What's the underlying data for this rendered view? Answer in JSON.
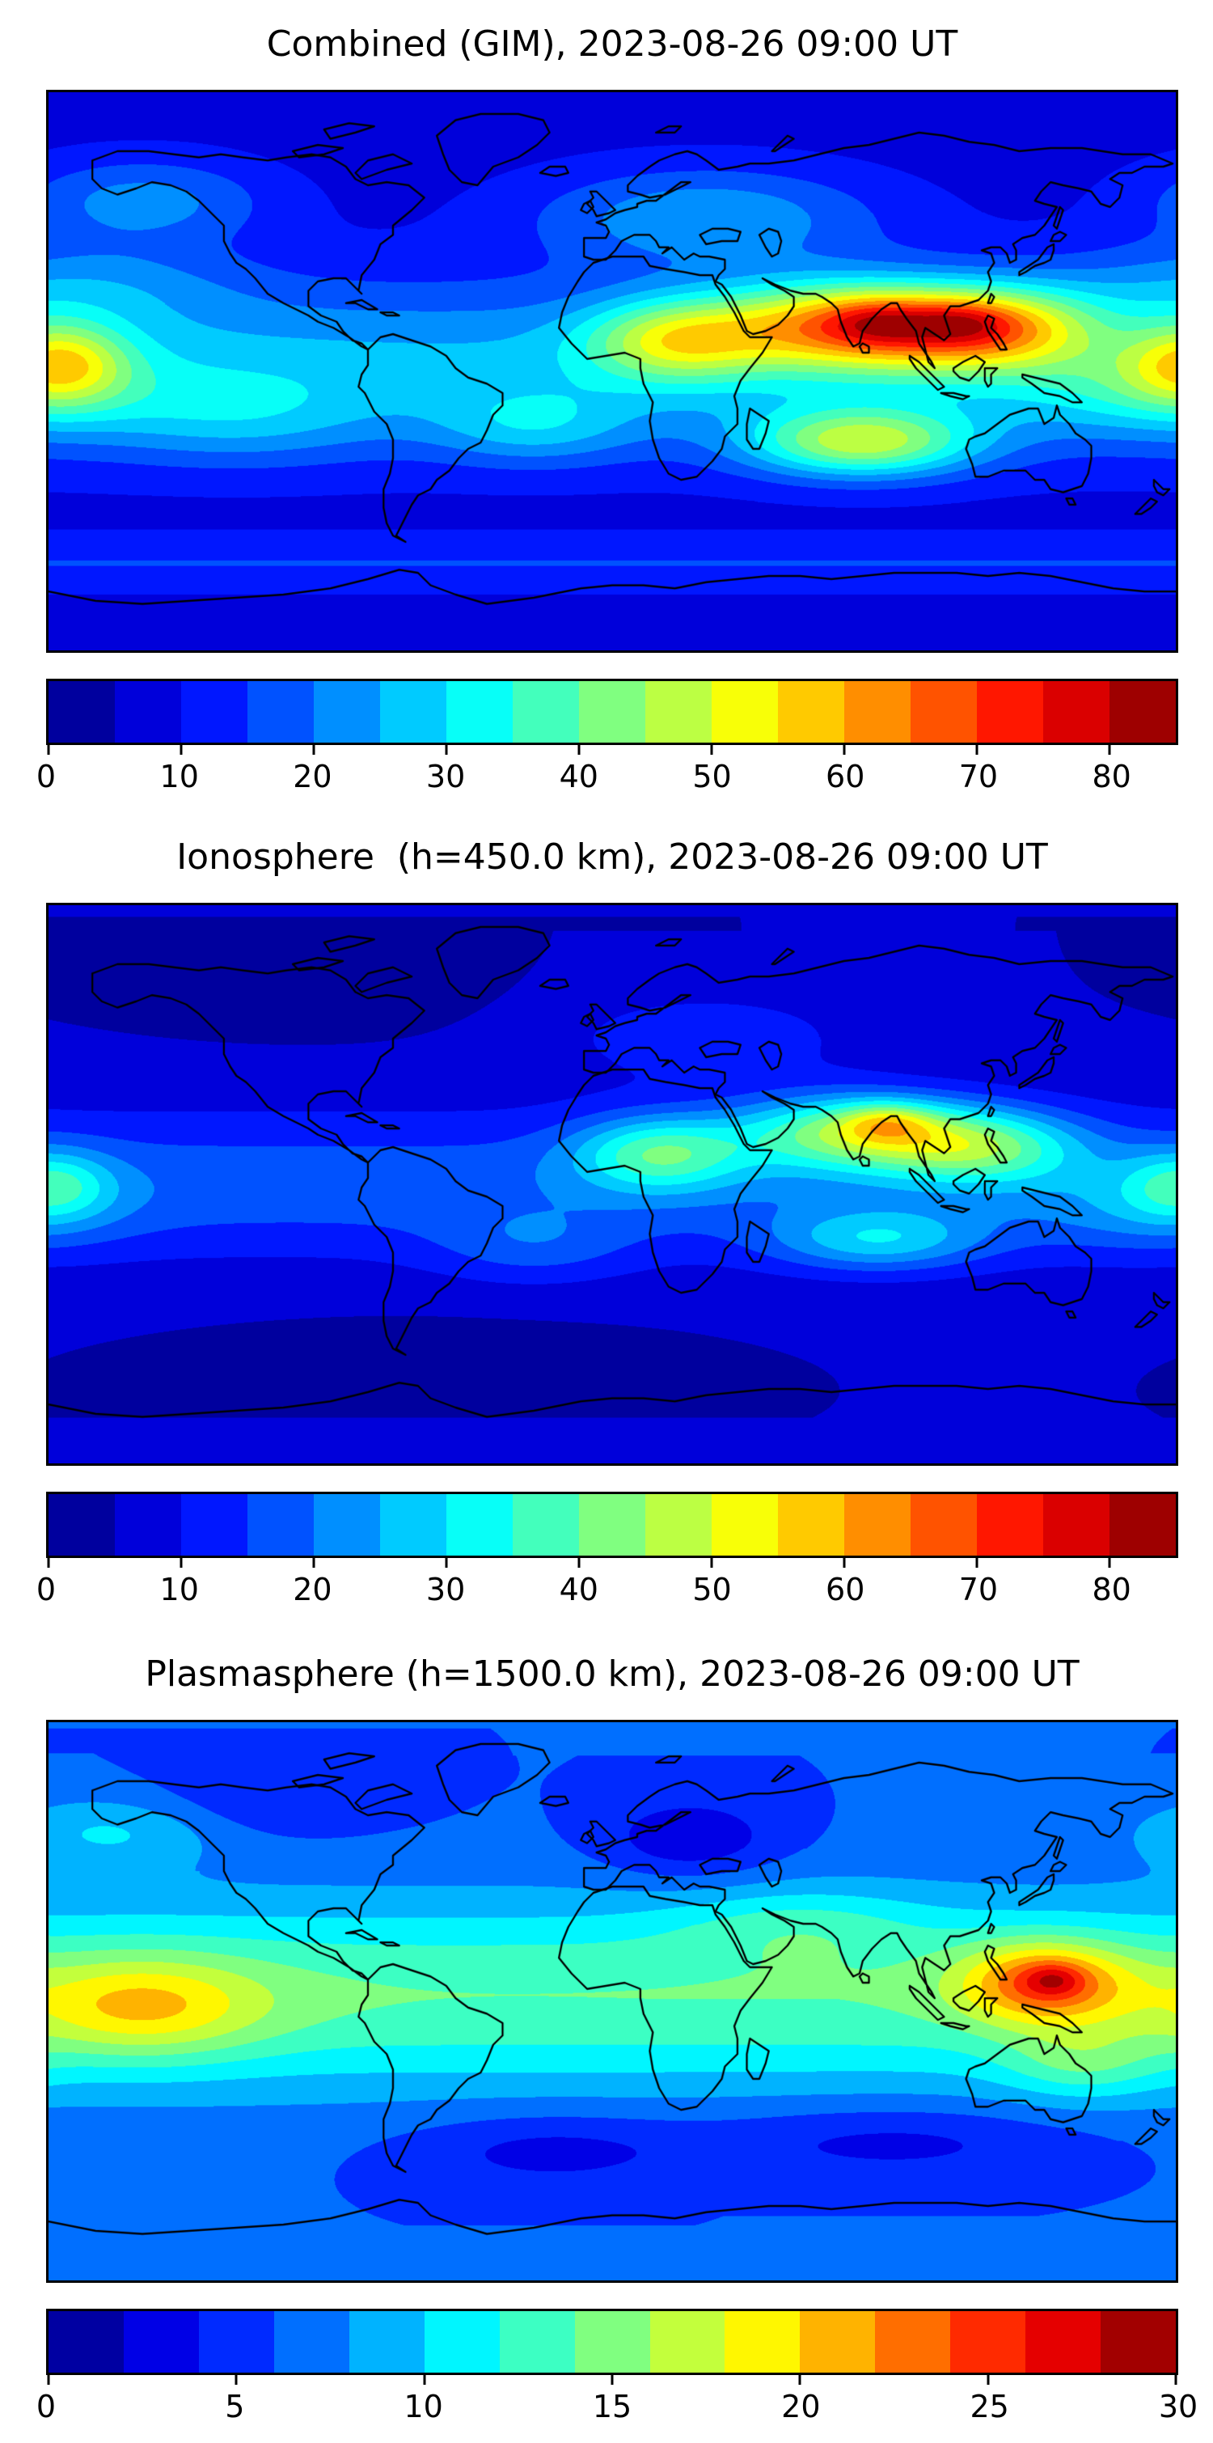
{
  "figure": {
    "background": "#ffffff",
    "text_color": "#000000",
    "colormap_name": "jet",
    "panel_count": 3
  },
  "chart_data": [
    {
      "type": "heatmap",
      "title": "Combined (GIM), 2023-08-26 09:00 UT",
      "projection": "equirectangular",
      "map_overlay": "coastlines",
      "lon_range": [
        -180,
        180
      ],
      "lat_range": [
        -90,
        90
      ],
      "colormap": "jet",
      "vmin": 0,
      "vmax": 85,
      "levels": 17,
      "colorbar_orientation": "horizontal",
      "colorbar_ticks": [
        0,
        10,
        20,
        30,
        40,
        50,
        60,
        70,
        80
      ],
      "field": {
        "base": 8,
        "band": {
          "lat": 2,
          "sigma": 27,
          "amp": 18
        },
        "blobs": [
          {
            "lon": 75,
            "lat": 15,
            "amp": 42,
            "slon": 42,
            "slat": 14
          },
          {
            "lon": 120,
            "lat": 14,
            "amp": 36,
            "slon": 34,
            "slat": 13
          },
          {
            "lon": 85,
            "lat": 16,
            "amp": 10,
            "slon": 16,
            "slat": 7
          },
          {
            "lon": 112,
            "lat": 16,
            "amp": 8,
            "slon": 14,
            "slat": 6
          },
          {
            "lon": 20,
            "lat": 10,
            "amp": 26,
            "slon": 28,
            "slat": 13
          },
          {
            "lon": 80,
            "lat": -23,
            "amp": 34,
            "slon": 36,
            "slat": 11
          },
          {
            "lon": -175,
            "lat": 3,
            "amp": 24,
            "slon": 20,
            "slat": 13
          },
          {
            "lon": -25,
            "lat": -18,
            "amp": 12,
            "slon": 32,
            "slat": 12
          },
          {
            "lon": -120,
            "lat": -15,
            "amp": 10,
            "slon": 45,
            "slat": 15
          },
          {
            "lon": 30,
            "lat": 50,
            "amp": 16,
            "slon": 55,
            "slat": 16
          },
          {
            "lon": -150,
            "lat": 55,
            "amp": 14,
            "slon": 40,
            "slat": 14
          },
          {
            "lon": 170,
            "lat": -5,
            "amp": 12,
            "slon": 40,
            "slat": 15
          },
          {
            "lon": -170,
            "lat": 28,
            "amp": 10,
            "slon": 50,
            "slat": 14
          },
          {
            "lon": 0,
            "lat": -62,
            "amp": 7,
            "slon": 9999,
            "slat": 9
          }
        ]
      }
    },
    {
      "type": "heatmap",
      "title": "Ionosphere  (h=450.0 km), 2023-08-26 09:00 UT",
      "projection": "equirectangular",
      "map_overlay": "coastlines",
      "lon_range": [
        -180,
        180
      ],
      "lat_range": [
        -90,
        90
      ],
      "colormap": "jet",
      "vmin": 0,
      "vmax": 85,
      "levels": 17,
      "colorbar_orientation": "horizontal",
      "colorbar_ticks": [
        0,
        10,
        20,
        30,
        40,
        50,
        60,
        70,
        80
      ],
      "field": {
        "base": 5,
        "band": {
          "lat": 0,
          "sigma": 24,
          "amp": 13
        },
        "blobs": [
          {
            "lon": 78,
            "lat": 17,
            "amp": 32,
            "slon": 38,
            "slat": 12
          },
          {
            "lon": 118,
            "lat": 12,
            "amp": 24,
            "slon": 32,
            "slat": 12
          },
          {
            "lon": 88,
            "lat": 20,
            "amp": 14,
            "slon": 14,
            "slat": 6
          },
          {
            "lon": 15,
            "lat": 10,
            "amp": 24,
            "slon": 27,
            "slat": 12
          },
          {
            "lon": 85,
            "lat": -18,
            "amp": 18,
            "slon": 34,
            "slat": 10
          },
          {
            "lon": -178,
            "lat": 0,
            "amp": 16,
            "slon": 18,
            "slat": 11
          },
          {
            "lon": 30,
            "lat": 48,
            "amp": 8,
            "slon": 50,
            "slat": 15
          },
          {
            "lon": -25,
            "lat": -20,
            "amp": 8,
            "slon": 32,
            "slat": 12
          },
          {
            "lon": -95,
            "lat": 62,
            "amp": -3,
            "slon": 50,
            "slat": 12
          },
          {
            "lon": -60,
            "lat": -55,
            "amp": -3,
            "slon": 60,
            "slat": 10
          },
          {
            "lon": 170,
            "lat": -8,
            "amp": 8,
            "slon": 35,
            "slat": 14
          }
        ]
      }
    },
    {
      "type": "heatmap",
      "title": "Plasmasphere (h=1500.0 km), 2023-08-26 09:00 UT",
      "projection": "equirectangular",
      "map_overlay": "coastlines",
      "lon_range": [
        -180,
        180
      ],
      "lat_range": [
        -90,
        90
      ],
      "colormap": "jet",
      "vmin": 0,
      "vmax": 30,
      "levels": 15,
      "colorbar_orientation": "horizontal",
      "colorbar_ticks": [
        0,
        5,
        10,
        15,
        20,
        25,
        30
      ],
      "field": {
        "base": 6,
        "band": {
          "lat": 2,
          "sigma": 30,
          "amp": 8
        },
        "blobs": [
          {
            "lon": 138,
            "lat": 6,
            "amp": 11,
            "slon": 26,
            "slat": 13
          },
          {
            "lon": 141,
            "lat": 7,
            "amp": 4,
            "slon": 9,
            "slat": 5
          },
          {
            "lon": -150,
            "lat": -2,
            "amp": 7,
            "slon": 38,
            "slat": 16
          },
          {
            "lon": 25,
            "lat": 52,
            "amp": -4,
            "slon": 28,
            "slat": 13
          },
          {
            "lon": -20,
            "lat": -48,
            "amp": -3,
            "slon": 45,
            "slat": 12
          },
          {
            "lon": 90,
            "lat": -45,
            "amp": -3,
            "slon": 60,
            "slat": 12
          },
          {
            "lon": -160,
            "lat": 55,
            "amp": 4,
            "slon": 35,
            "slat": 12
          },
          {
            "lon": -110,
            "lat": 65,
            "amp": -2,
            "slon": 40,
            "slat": 12
          },
          {
            "lon": 60,
            "lat": 25,
            "amp": 3,
            "slon": 40,
            "slat": 12
          },
          {
            "lon": 150,
            "lat": -20,
            "amp": 4,
            "slon": 25,
            "slat": 12
          }
        ]
      }
    }
  ]
}
